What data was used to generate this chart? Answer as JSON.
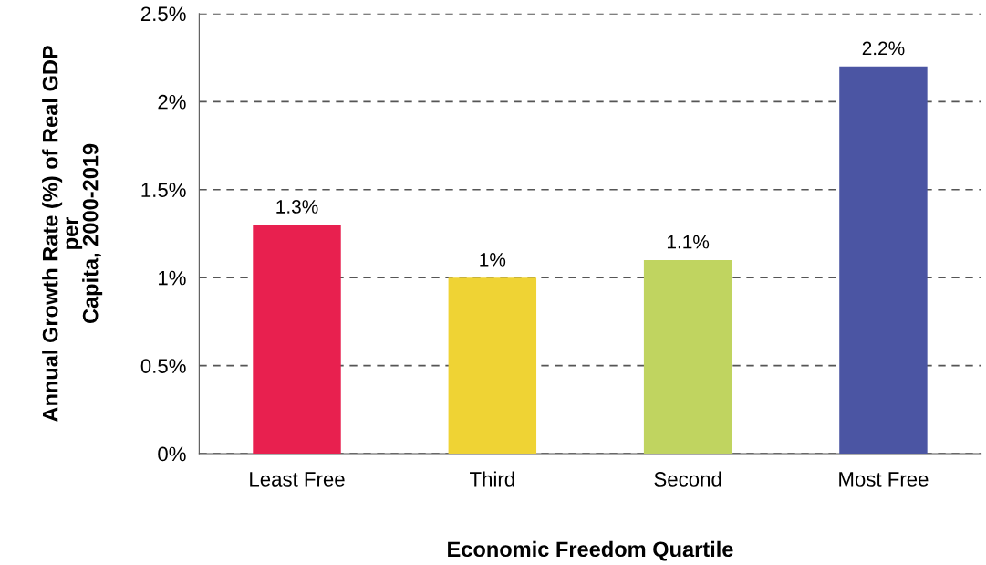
{
  "chart_data": {
    "type": "bar",
    "xlabel": "Economic Freedom Quartile",
    "ylabel": "Annual Growth Rate (%) of Real GDP\nper\nCapita, 2000-2019",
    "categories": [
      "Least Free",
      "Third",
      "Second",
      "Most Free"
    ],
    "values": [
      1.3,
      1.0,
      1.1,
      2.2
    ],
    "colors": [
      "#e8204f",
      "#efd334",
      "#c0d460",
      "#4b55a3"
    ],
    "value_labels": [
      "1.3%",
      "1%",
      "1.1%",
      "2.2%"
    ],
    "ylim": [
      0,
      2.5
    ],
    "yticks": [
      {
        "value": 0,
        "label": "0%"
      },
      {
        "value": 0.5,
        "label": "0.5%"
      },
      {
        "value": 1,
        "label": "1%"
      },
      {
        "value": 1.5,
        "label": "1.5%"
      },
      {
        "value": 2,
        "label": "2%"
      },
      {
        "value": 2.5,
        "label": "2.5%"
      }
    ],
    "grid": "y",
    "line_style": "dashed"
  }
}
